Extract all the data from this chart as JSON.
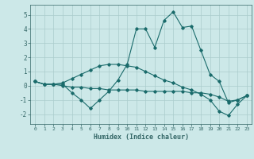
{
  "xlabel": "Humidex (Indice chaleur)",
  "background_color": "#cce8e8",
  "grid_color": "#aacccc",
  "line_color": "#1a6b6b",
  "xlim": [
    -0.5,
    23.5
  ],
  "ylim": [
    -2.7,
    5.7
  ],
  "yticks": [
    -2,
    -1,
    0,
    1,
    2,
    3,
    4,
    5
  ],
  "xticks": [
    0,
    1,
    2,
    3,
    4,
    5,
    6,
    7,
    8,
    9,
    10,
    11,
    12,
    13,
    14,
    15,
    16,
    17,
    18,
    19,
    20,
    21,
    22,
    23
  ],
  "line1_x": [
    0,
    1,
    2,
    3,
    4,
    5,
    6,
    7,
    8,
    9,
    10,
    11,
    12,
    13,
    14,
    15,
    16,
    17,
    18,
    19,
    20,
    21,
    22,
    23
  ],
  "line1_y": [
    0.3,
    0.1,
    0.1,
    0.1,
    -0.5,
    -1.0,
    -1.6,
    -1.0,
    -0.4,
    0.4,
    1.5,
    4.0,
    4.0,
    2.7,
    4.6,
    5.2,
    4.1,
    4.2,
    2.5,
    0.8,
    0.3,
    -1.2,
    -1.0,
    -0.7
  ],
  "line2_x": [
    0,
    1,
    2,
    3,
    4,
    5,
    6,
    7,
    8,
    9,
    10,
    11,
    12,
    13,
    14,
    15,
    16,
    17,
    18,
    19,
    20,
    21,
    22,
    23
  ],
  "line2_y": [
    0.3,
    0.1,
    0.1,
    0.0,
    -0.1,
    -0.1,
    -0.2,
    -0.2,
    -0.3,
    -0.3,
    -0.3,
    -0.3,
    -0.4,
    -0.4,
    -0.4,
    -0.4,
    -0.4,
    -0.5,
    -0.5,
    -0.6,
    -0.8,
    -1.1,
    -1.0,
    -0.7
  ],
  "line3_x": [
    0,
    1,
    2,
    3,
    4,
    5,
    6,
    7,
    8,
    9,
    10,
    11,
    12,
    13,
    14,
    15,
    16,
    17,
    18,
    19,
    20,
    21,
    22,
    23
  ],
  "line3_y": [
    0.3,
    0.1,
    0.1,
    0.2,
    0.5,
    0.8,
    1.1,
    1.4,
    1.5,
    1.5,
    1.4,
    1.3,
    1.0,
    0.7,
    0.4,
    0.2,
    -0.1,
    -0.3,
    -0.6,
    -1.0,
    -1.8,
    -2.1,
    -1.3,
    -0.7
  ]
}
